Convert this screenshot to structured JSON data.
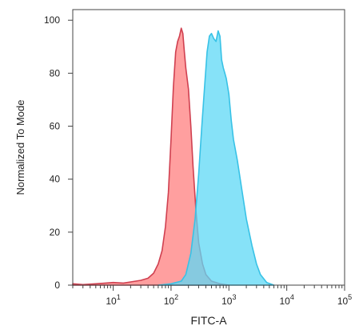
{
  "chart_data": {
    "type": "area",
    "xlabel": "FITC-A",
    "ylabel": "Normalized To Mode",
    "xscale": "log",
    "xlim": [
      2,
      100000
    ],
    "ylim": [
      0,
      104
    ],
    "grid": false,
    "legend": "none",
    "x_ticks": [
      {
        "value": 10,
        "base": "10",
        "exp": "1"
      },
      {
        "value": 100,
        "base": "10",
        "exp": "2"
      },
      {
        "value": 1000,
        "base": "10",
        "exp": "3"
      },
      {
        "value": 10000,
        "base": "10",
        "exp": "4"
      },
      {
        "value": 100000,
        "base": "10",
        "exp": "5"
      }
    ],
    "y_ticks": [
      {
        "value": 0,
        "label": "0"
      },
      {
        "value": 20,
        "label": "20"
      },
      {
        "value": 40,
        "label": "40"
      },
      {
        "value": 60,
        "label": "60"
      },
      {
        "value": 80,
        "label": "80"
      },
      {
        "value": 100,
        "label": "100"
      }
    ],
    "series": [
      {
        "fill": "#ff7f7f",
        "stroke": "#d04050",
        "opacity": 0.75,
        "points": [
          [
            2,
            0.5
          ],
          [
            3,
            0.2
          ],
          [
            5,
            0.5
          ],
          [
            10,
            1.0
          ],
          [
            15,
            0.8
          ],
          [
            20,
            1.2
          ],
          [
            30,
            1.8
          ],
          [
            40,
            2.6
          ],
          [
            50,
            4.5
          ],
          [
            60,
            8
          ],
          [
            70,
            13
          ],
          [
            80,
            22
          ],
          [
            90,
            35
          ],
          [
            100,
            55
          ],
          [
            110,
            75
          ],
          [
            120,
            88
          ],
          [
            130,
            92
          ],
          [
            140,
            94
          ],
          [
            150,
            97
          ],
          [
            160,
            95
          ],
          [
            170,
            88
          ],
          [
            180,
            82
          ],
          [
            200,
            74
          ],
          [
            220,
            60
          ],
          [
            240,
            45
          ],
          [
            270,
            28
          ],
          [
            300,
            16
          ],
          [
            350,
            8
          ],
          [
            400,
            4
          ],
          [
            500,
            1.5
          ],
          [
            700,
            0.5
          ],
          [
            1000,
            0
          ]
        ]
      },
      {
        "fill": "#5dd8f5",
        "stroke": "#38c2e6",
        "opacity": 0.75,
        "points": [
          [
            60,
            0
          ],
          [
            100,
            0.5
          ],
          [
            150,
            1.5
          ],
          [
            180,
            4
          ],
          [
            220,
            12
          ],
          [
            260,
            25
          ],
          [
            300,
            42
          ],
          [
            340,
            60
          ],
          [
            380,
            75
          ],
          [
            420,
            88
          ],
          [
            460,
            94
          ],
          [
            500,
            95
          ],
          [
            550,
            93
          ],
          [
            600,
            92
          ],
          [
            650,
            96
          ],
          [
            700,
            94
          ],
          [
            750,
            85
          ],
          [
            800,
            82
          ],
          [
            850,
            80
          ],
          [
            900,
            78
          ],
          [
            1000,
            72
          ],
          [
            1100,
            62
          ],
          [
            1200,
            55
          ],
          [
            1400,
            47
          ],
          [
            1700,
            35
          ],
          [
            2000,
            25
          ],
          [
            2500,
            15
          ],
          [
            3000,
            8
          ],
          [
            3500,
            4
          ],
          [
            4500,
            1
          ],
          [
            6000,
            0
          ]
        ]
      }
    ]
  }
}
